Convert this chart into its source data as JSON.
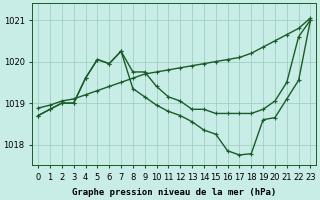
{
  "xlabel": "Graphe pression niveau de la mer (hPa)",
  "bg_color": "#c8ece6",
  "grid_color": "#99ccbb",
  "line_color": "#1a5c2a",
  "hours": [
    0,
    1,
    2,
    3,
    4,
    5,
    6,
    7,
    8,
    9,
    10,
    11,
    12,
    13,
    14,
    15,
    16,
    17,
    18,
    19,
    20,
    21,
    22,
    23
  ],
  "ylim": [
    1017.5,
    1021.4
  ],
  "yticks": [
    1018,
    1019,
    1020,
    1021
  ],
  "line1": [
    1018.88,
    1018.95,
    1019.05,
    1019.1,
    1019.2,
    1019.3,
    1019.4,
    1019.5,
    1019.6,
    1019.7,
    1019.75,
    1019.8,
    1019.85,
    1019.9,
    1019.95,
    1020.0,
    1020.05,
    1020.1,
    1020.2,
    1020.35,
    1020.5,
    1020.65,
    1020.8,
    1021.05
  ],
  "line2": [
    1018.7,
    1018.85,
    1019.0,
    1019.0,
    1019.6,
    1020.05,
    1019.95,
    1020.25,
    1019.75,
    1019.75,
    1019.4,
    1019.15,
    1019.05,
    1018.85,
    1018.85,
    1018.75,
    1018.75,
    1018.75,
    1018.75,
    1018.85,
    1019.05,
    1019.5,
    1020.6,
    1021.0
  ],
  "line3": [
    1018.7,
    1018.85,
    1019.0,
    1019.0,
    1019.6,
    1020.05,
    1019.95,
    1020.25,
    1019.35,
    1019.15,
    1018.95,
    1018.8,
    1018.7,
    1018.55,
    1018.35,
    1018.25,
    1017.85,
    1017.75,
    1017.78,
    1018.6,
    1018.65,
    1019.1,
    1019.55,
    1021.0
  ],
  "marker": "+",
  "markersize": 3,
  "linewidth": 1.0,
  "label_fontsize": 6.5,
  "tick_fontsize": 6.0
}
